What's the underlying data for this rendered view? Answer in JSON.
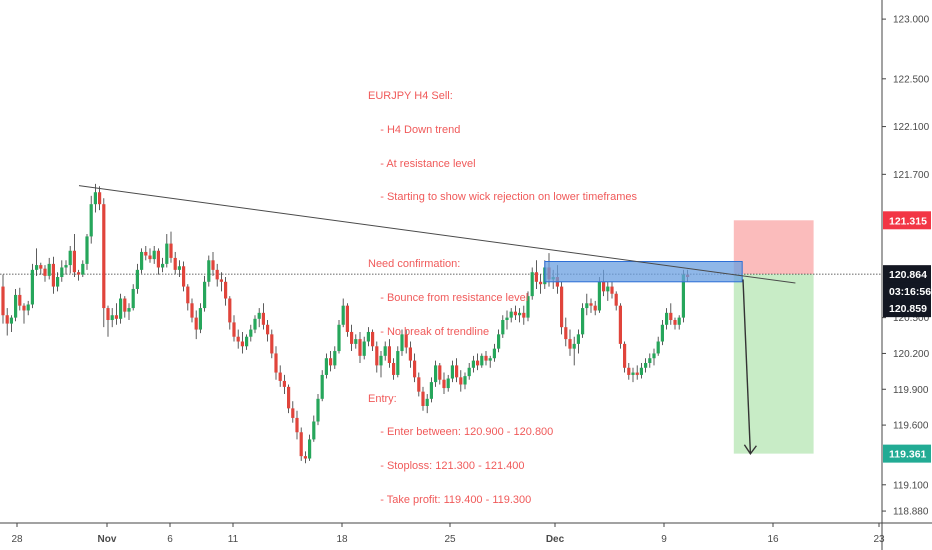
{
  "chart_data": {
    "type": "candlestick",
    "symbol_timeframe": "EURJPY H4",
    "y_range": [
      118.78,
      123.16
    ],
    "y_ticks": [
      "123.000",
      "122.500",
      "122.100",
      "121.700",
      "121.315",
      "120.864",
      "120.859",
      "120.500",
      "120.200",
      "119.900",
      "119.600",
      "119.361",
      "119.100",
      "118.880"
    ],
    "x_ticks": [
      "28",
      "Nov",
      "6",
      "11",
      "18",
      "25",
      "Dec",
      "9",
      "16",
      "23"
    ],
    "price_labels": {
      "stop": {
        "text": "121.315",
        "value": 121.315,
        "color": "#f23645"
      },
      "current": {
        "text": "120.864",
        "value": 120.864,
        "color": "#131722"
      },
      "countdown": {
        "text": "03:16:56",
        "color": "#131722"
      },
      "bid": {
        "text": "120.859",
        "value": 120.859,
        "color": "#131722"
      },
      "target": {
        "text": "119.361",
        "value": 119.361,
        "color": "#22ab94"
      }
    },
    "trendline": {
      "from": {
        "bar": 0,
        "price": 121.605
      },
      "to": {
        "bar": 172,
        "price": 120.79
      }
    },
    "resistance_zone": {
      "from_bar": 129,
      "to_bar": 176,
      "low": 120.8,
      "high": 120.97
    },
    "position": {
      "entry": 120.864,
      "stop": 121.315,
      "target": 119.361,
      "from_bar": 174,
      "to_bar": 193
    },
    "arrow": {
      "from": {
        "bar": 175,
        "price": 120.82
      },
      "to": {
        "bar": 177,
        "price": 119.36
      }
    },
    "colors": {
      "up": "#26a65b",
      "down": "#e0443b",
      "trend": "#4a4a4a",
      "zone_fill": "#6a9fe0",
      "zone_stroke": "#2d6fd6",
      "stop_fill": "#fbbcbc",
      "target_fill": "#c8ecc6"
    },
    "candles": [
      [
        120.76,
        120.86,
        120.45,
        120.52
      ],
      [
        120.52,
        120.58,
        120.35,
        120.45
      ],
      [
        120.45,
        120.52,
        120.38,
        120.5
      ],
      [
        120.5,
        120.74,
        120.47,
        120.69
      ],
      [
        120.69,
        120.75,
        120.56,
        120.6
      ],
      [
        120.6,
        120.62,
        120.45,
        120.56
      ],
      [
        120.56,
        120.64,
        120.52,
        120.61
      ],
      [
        120.61,
        120.95,
        120.58,
        120.9
      ],
      [
        120.9,
        121.08,
        120.85,
        120.94
      ],
      [
        120.94,
        120.96,
        120.86,
        120.91
      ],
      [
        120.91,
        120.94,
        120.8,
        120.85
      ],
      [
        120.85,
        121.0,
        120.82,
        120.95
      ],
      [
        120.95,
        121.01,
        120.7,
        120.76
      ],
      [
        120.76,
        120.88,
        120.72,
        120.84
      ],
      [
        120.84,
        120.98,
        120.8,
        120.92
      ],
      [
        120.92,
        120.98,
        120.86,
        120.94
      ],
      [
        120.94,
        121.1,
        120.87,
        121.06
      ],
      [
        121.06,
        121.2,
        120.84,
        120.88
      ],
      [
        120.88,
        120.9,
        120.81,
        120.86
      ],
      [
        120.86,
        120.98,
        120.84,
        120.95
      ],
      [
        120.95,
        121.2,
        120.9,
        121.18
      ],
      [
        121.18,
        121.52,
        121.12,
        121.45
      ],
      [
        121.45,
        121.62,
        121.38,
        121.55
      ],
      [
        121.55,
        121.6,
        121.4,
        121.45
      ],
      [
        121.45,
        121.5,
        120.42,
        120.58
      ],
      [
        120.58,
        120.6,
        120.34,
        120.48
      ],
      [
        120.48,
        120.58,
        120.42,
        120.52
      ],
      [
        120.52,
        120.62,
        120.44,
        120.49
      ],
      [
        120.49,
        120.7,
        120.45,
        120.66
      ],
      [
        120.66,
        120.68,
        120.5,
        120.55
      ],
      [
        120.55,
        120.62,
        120.48,
        120.58
      ],
      [
        120.58,
        120.78,
        120.56,
        120.74
      ],
      [
        120.74,
        120.95,
        120.7,
        120.9
      ],
      [
        120.9,
        121.08,
        120.87,
        121.05
      ],
      [
        121.05,
        121.1,
        120.98,
        121.02
      ],
      [
        121.02,
        121.08,
        120.96,
        120.99
      ],
      [
        120.99,
        121.1,
        120.95,
        121.06
      ],
      [
        121.06,
        121.08,
        120.86,
        120.92
      ],
      [
        120.92,
        121.0,
        120.88,
        120.95
      ],
      [
        120.95,
        121.2,
        120.92,
        121.12
      ],
      [
        121.12,
        121.22,
        120.96,
        121.0
      ],
      [
        121.0,
        121.05,
        120.86,
        120.9
      ],
      [
        120.9,
        120.98,
        120.84,
        120.93
      ],
      [
        120.93,
        120.97,
        120.72,
        120.76
      ],
      [
        120.76,
        120.78,
        120.56,
        120.62
      ],
      [
        120.62,
        120.66,
        120.46,
        120.5
      ],
      [
        120.5,
        120.56,
        120.32,
        120.4
      ],
      [
        120.4,
        120.62,
        120.37,
        120.58
      ],
      [
        120.58,
        120.85,
        120.55,
        120.8
      ],
      [
        120.8,
        121.02,
        120.76,
        120.98
      ],
      [
        120.98,
        121.05,
        120.85,
        120.9
      ],
      [
        120.9,
        120.95,
        120.76,
        120.82
      ],
      [
        120.82,
        120.88,
        120.72,
        120.8
      ],
      [
        120.8,
        120.84,
        120.6,
        120.66
      ],
      [
        120.66,
        120.68,
        120.4,
        120.46
      ],
      [
        120.46,
        120.52,
        120.3,
        120.34
      ],
      [
        120.34,
        120.4,
        120.24,
        120.3
      ],
      [
        120.3,
        120.38,
        120.2,
        120.26
      ],
      [
        120.26,
        120.36,
        120.23,
        120.34
      ],
      [
        120.34,
        120.44,
        120.3,
        120.4
      ],
      [
        120.4,
        120.52,
        120.37,
        120.49
      ],
      [
        120.49,
        120.58,
        120.42,
        120.54
      ],
      [
        120.54,
        120.62,
        120.4,
        120.44
      ],
      [
        120.44,
        120.48,
        120.3,
        120.36
      ],
      [
        120.36,
        120.4,
        120.16,
        120.2
      ],
      [
        120.2,
        120.26,
        119.98,
        120.04
      ],
      [
        120.04,
        120.1,
        119.92,
        119.97
      ],
      [
        119.97,
        120.02,
        119.86,
        119.92
      ],
      [
        119.92,
        119.94,
        119.7,
        119.74
      ],
      [
        119.74,
        119.8,
        119.62,
        119.66
      ],
      [
        119.66,
        119.72,
        119.48,
        119.54
      ],
      [
        119.54,
        119.58,
        119.3,
        119.34
      ],
      [
        119.34,
        119.38,
        119.28,
        119.32
      ],
      [
        119.32,
        119.52,
        119.3,
        119.48
      ],
      [
        119.48,
        119.68,
        119.46,
        119.63
      ],
      [
        119.63,
        119.86,
        119.6,
        119.82
      ],
      [
        119.82,
        120.06,
        119.8,
        120.02
      ],
      [
        120.02,
        120.2,
        119.99,
        120.16
      ],
      [
        120.16,
        120.22,
        120.05,
        120.1
      ],
      [
        120.1,
        120.26,
        120.07,
        120.22
      ],
      [
        120.22,
        120.48,
        120.2,
        120.44
      ],
      [
        120.44,
        120.66,
        120.42,
        120.6
      ],
      [
        120.6,
        120.62,
        120.34,
        120.38
      ],
      [
        120.38,
        120.44,
        120.22,
        120.28
      ],
      [
        120.28,
        120.36,
        120.24,
        120.32
      ],
      [
        120.32,
        120.38,
        120.12,
        120.18
      ],
      [
        120.18,
        120.34,
        120.15,
        120.3
      ],
      [
        120.3,
        120.42,
        120.26,
        120.38
      ],
      [
        120.38,
        120.4,
        120.22,
        120.26
      ],
      [
        120.26,
        120.3,
        120.04,
        120.1
      ],
      [
        120.1,
        120.22,
        120.0,
        120.18
      ],
      [
        120.18,
        120.3,
        120.14,
        120.26
      ],
      [
        120.26,
        120.32,
        120.08,
        120.12
      ],
      [
        120.12,
        120.16,
        119.98,
        120.02
      ],
      [
        120.02,
        120.26,
        120.0,
        120.22
      ],
      [
        120.22,
        120.4,
        120.18,
        120.36
      ],
      [
        120.36,
        120.4,
        120.2,
        120.25
      ],
      [
        120.25,
        120.3,
        120.08,
        120.14
      ],
      [
        120.14,
        120.2,
        119.96,
        120.0
      ],
      [
        120.0,
        120.04,
        119.84,
        119.88
      ],
      [
        119.88,
        119.92,
        119.72,
        119.76
      ],
      [
        119.76,
        119.86,
        119.7,
        119.82
      ],
      [
        119.82,
        120.0,
        119.79,
        119.96
      ],
      [
        119.96,
        120.14,
        119.92,
        120.1
      ],
      [
        120.1,
        120.12,
        119.94,
        119.98
      ],
      [
        119.98,
        120.04,
        119.86,
        119.91
      ],
      [
        119.91,
        120.02,
        119.88,
        119.99
      ],
      [
        119.99,
        120.14,
        119.96,
        120.1
      ],
      [
        120.1,
        120.16,
        119.96,
        120.0
      ],
      [
        120.0,
        120.06,
        119.88,
        119.94
      ],
      [
        119.94,
        120.04,
        119.9,
        120.01
      ],
      [
        120.01,
        120.12,
        119.98,
        120.08
      ],
      [
        120.08,
        120.18,
        120.04,
        120.14
      ],
      [
        120.14,
        120.2,
        120.06,
        120.1
      ],
      [
        120.1,
        120.2,
        120.08,
        120.18
      ],
      [
        120.18,
        120.22,
        120.1,
        120.14
      ],
      [
        120.14,
        120.18,
        120.08,
        120.16
      ],
      [
        120.16,
        120.28,
        120.13,
        120.24
      ],
      [
        120.24,
        120.4,
        120.21,
        120.36
      ],
      [
        120.36,
        120.52,
        120.33,
        120.48
      ],
      [
        120.48,
        120.56,
        120.4,
        120.5
      ],
      [
        120.5,
        120.58,
        120.46,
        120.55
      ],
      [
        120.55,
        120.6,
        120.48,
        120.52
      ],
      [
        120.52,
        120.58,
        120.46,
        120.54
      ],
      [
        120.54,
        120.6,
        120.44,
        120.5
      ],
      [
        120.5,
        120.72,
        120.47,
        120.68
      ],
      [
        120.68,
        120.92,
        120.65,
        120.88
      ],
      [
        120.88,
        120.98,
        120.74,
        120.8
      ],
      [
        120.8,
        120.86,
        120.7,
        120.78
      ],
      [
        120.78,
        120.98,
        120.74,
        120.92
      ],
      [
        120.92,
        121.04,
        120.76,
        120.82
      ],
      [
        120.82,
        120.9,
        120.74,
        120.84
      ],
      [
        120.84,
        120.94,
        120.7,
        120.76
      ],
      [
        120.76,
        120.8,
        120.36,
        120.42
      ],
      [
        120.42,
        120.5,
        120.26,
        120.32
      ],
      [
        120.32,
        120.4,
        120.18,
        120.24
      ],
      [
        120.24,
        120.34,
        120.1,
        120.28
      ],
      [
        120.28,
        120.4,
        120.2,
        120.36
      ],
      [
        120.36,
        120.62,
        120.33,
        120.58
      ],
      [
        120.58,
        120.7,
        120.52,
        120.62
      ],
      [
        120.62,
        120.66,
        120.54,
        120.6
      ],
      [
        120.6,
        120.64,
        120.52,
        120.56
      ],
      [
        120.56,
        120.84,
        120.54,
        120.8
      ],
      [
        120.8,
        120.9,
        120.68,
        120.72
      ],
      [
        120.72,
        120.8,
        120.64,
        120.76
      ],
      [
        120.76,
        120.8,
        120.66,
        120.7
      ],
      [
        120.7,
        120.72,
        120.56,
        120.6
      ],
      [
        120.6,
        120.62,
        120.24,
        120.28
      ],
      [
        120.28,
        120.3,
        120.04,
        120.08
      ],
      [
        120.08,
        120.12,
        119.98,
        120.02
      ],
      [
        120.02,
        120.08,
        119.96,
        120.04
      ],
      [
        120.04,
        120.1,
        119.98,
        120.02
      ],
      [
        120.02,
        120.12,
        119.99,
        120.08
      ],
      [
        120.08,
        120.16,
        120.04,
        120.12
      ],
      [
        120.12,
        120.2,
        120.08,
        120.16
      ],
      [
        120.16,
        120.24,
        120.1,
        120.2
      ],
      [
        120.2,
        120.34,
        120.18,
        120.3
      ],
      [
        120.3,
        120.48,
        120.27,
        120.44
      ],
      [
        120.44,
        120.58,
        120.4,
        120.54
      ],
      [
        120.54,
        120.62,
        120.44,
        120.48
      ],
      [
        120.48,
        120.5,
        120.4,
        120.44
      ],
      [
        120.44,
        120.52,
        120.4,
        120.5
      ],
      [
        120.5,
        120.9,
        120.46,
        120.86
      ],
      [
        120.86,
        120.9,
        120.8,
        120.84
      ]
    ]
  }
}
